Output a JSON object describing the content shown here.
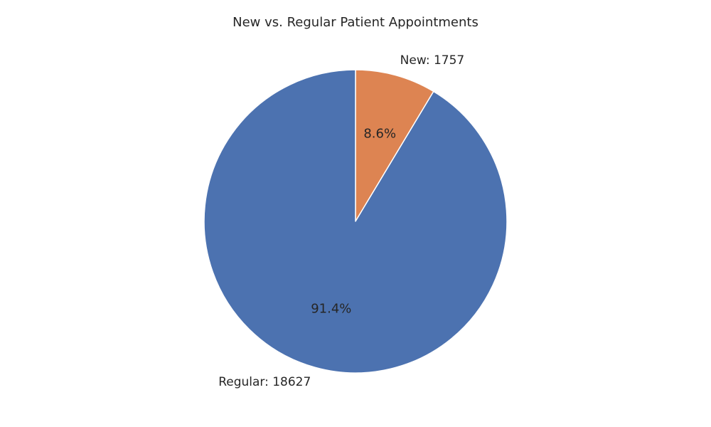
{
  "chart_data": {
    "type": "pie",
    "title": "New vs. Regular Patient Appointments",
    "categories": [
      "New",
      "Regular"
    ],
    "values": [
      1757,
      18627
    ],
    "labels": [
      "New: 1757",
      "Regular: 18627"
    ],
    "percent_labels": [
      "8.6%",
      "91.4%"
    ],
    "colors": [
      "#dd8452",
      "#4c72b0"
    ],
    "start_angle_deg": 90,
    "direction": "clockwise",
    "legend": "none"
  }
}
